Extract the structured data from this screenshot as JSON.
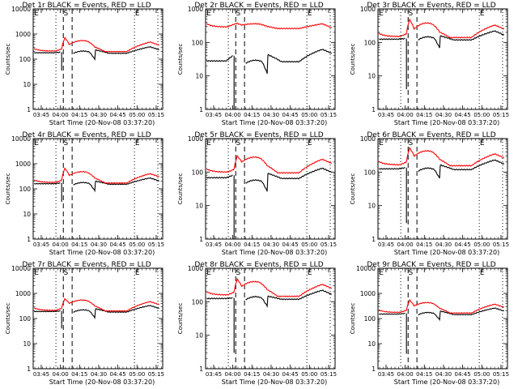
{
  "chart_data": {
    "type": "line",
    "layout": "3x3 grid",
    "common": {
      "xlabel": "Start Time (20-Nov-08 03:37:20)",
      "ylabel": "Counts/sec",
      "yscale": "log",
      "x_ticks": [
        "03:45",
        "04:00",
        "04:15",
        "04:30",
        "04:45",
        "05:00",
        "05:15"
      ],
      "x_tick_minutes": [
        225,
        240,
        255,
        270,
        285,
        300,
        315
      ],
      "xlim_minutes": [
        218.7,
        320.1
      ],
      "series_colors": {
        "events": "#000000",
        "lld": "#ff0000"
      },
      "legend_text": "BLACK = Events, RED = LLD",
      "vlines": [
        {
          "minute": 236.5,
          "style": "dotted"
        },
        {
          "minute": 242.3,
          "style": "dashed"
        },
        {
          "minute": 249.2,
          "style": "dashed"
        },
        {
          "minute": 298.0,
          "style": "dotted"
        },
        {
          "minute": 316.3,
          "style": "dotted"
        }
      ],
      "markers": [
        {
          "label": "E",
          "minute": 219.5
        },
        {
          "label": "S",
          "minute": 242.5
        },
        {
          "label": "E",
          "minute": 298.5
        }
      ]
    },
    "panels": [
      {
        "title": "Det 1r BLACK = Events, RED = LLD",
        "ylim": [
          1,
          10000
        ],
        "y_ticks": [
          "1",
          "10",
          "100",
          "1000",
          "10000"
        ],
        "events": {
          "base": 180,
          "pre": 190,
          "dip": 35,
          "mid": 200,
          "step_low": 130,
          "step_high": 230,
          "late": 310
        },
        "lld": {
          "base": 210,
          "peak": 700,
          "trough": 380,
          "mid": 550,
          "low": 200,
          "late": 480
        }
      },
      {
        "title": "Det 2r BLACK = Events, RED = LLD",
        "ylim": [
          1,
          1000
        ],
        "y_ticks": [
          "1",
          "10",
          "100",
          "1000"
        ],
        "events": {
          "base": 28,
          "pre": 40,
          "dip": 1,
          "mid": 28,
          "step_low": 16,
          "step_high": 42,
          "late": 62
        },
        "lld": {
          "base": 290,
          "peak": 370,
          "trough": 330,
          "mid": 360,
          "low": 260,
          "late": 360
        }
      },
      {
        "title": "Det 3r BLACK = Events, RED = LLD",
        "ylim": [
          1,
          1000
        ],
        "y_ticks": [
          "1",
          "10",
          "100",
          "1000"
        ],
        "events": {
          "base": 125,
          "pre": 130,
          "dip": 4,
          "mid": 140,
          "step_low": 90,
          "step_high": 155,
          "late": 220
        },
        "lld": {
          "base": 150,
          "peak": 480,
          "trough": 250,
          "mid": 380,
          "low": 140,
          "late": 330
        }
      },
      {
        "title": "Det 4r BLACK = Events, RED = LLD",
        "ylim": [
          1,
          10000
        ],
        "y_ticks": [
          "1",
          "10",
          "100",
          "1000",
          "10000"
        ],
        "events": {
          "base": 160,
          "pre": 170,
          "dip": 30,
          "mid": 170,
          "step_low": 110,
          "step_high": 200,
          "late": 270
        },
        "lld": {
          "base": 180,
          "peak": 650,
          "trough": 340,
          "mid": 480,
          "low": 170,
          "late": 400
        }
      },
      {
        "title": "Det 5r BLACK = Events, RED = LLD",
        "ylim": [
          1,
          1000
        ],
        "y_ticks": [
          "1",
          "10",
          "100",
          "1000"
        ],
        "events": {
          "base": 68,
          "pre": 80,
          "dip": 1,
          "mid": 55,
          "step_low": 35,
          "step_high": 90,
          "late": 130
        },
        "lld": {
          "base": 100,
          "peak": 300,
          "trough": 200,
          "mid": 280,
          "low": 95,
          "late": 240
        }
      },
      {
        "title": "Det 6r BLACK = Events, RED = LLD",
        "ylim": [
          1,
          1000
        ],
        "y_ticks": [
          "1",
          "10",
          "100",
          "1000"
        ],
        "events": {
          "base": 125,
          "pre": 135,
          "dip": 3,
          "mid": 125,
          "step_low": 85,
          "step_high": 160,
          "late": 230
        },
        "lld": {
          "base": 165,
          "peak": 520,
          "trough": 300,
          "mid": 430,
          "low": 155,
          "late": 350
        }
      },
      {
        "title": "Det 7r BLACK = Events, RED = LLD",
        "ylim": [
          1,
          10000
        ],
        "y_ticks": [
          "1",
          "10",
          "100",
          "1000",
          "10000"
        ],
        "events": {
          "base": 190,
          "pre": 200,
          "dip": 40,
          "mid": 210,
          "step_low": 140,
          "step_high": 240,
          "late": 330
        },
        "lld": {
          "base": 210,
          "peak": 600,
          "trough": 400,
          "mid": 540,
          "low": 200,
          "late": 470
        }
      },
      {
        "title": "Det 8r BLACK = Events, RED = LLD",
        "ylim": [
          1,
          1000
        ],
        "y_ticks": [
          "1",
          "10",
          "100",
          "1000"
        ],
        "events": {
          "base": 125,
          "pre": 130,
          "dip": 3,
          "mid": 135,
          "step_low": 95,
          "step_high": 145,
          "late": 220
        },
        "lld": {
          "base": 160,
          "peak": 470,
          "trough": 290,
          "mid": 400,
          "low": 145,
          "late": 330
        }
      },
      {
        "title": "Det 9r BLACK = Events, RED = LLD",
        "ylim": [
          1,
          10000
        ],
        "y_ticks": [
          "1",
          "10",
          "100",
          "1000",
          "10000"
        ],
        "events": {
          "base": 150,
          "pre": 160,
          "dip": 4,
          "mid": 165,
          "step_low": 115,
          "step_high": 195,
          "late": 260
        },
        "lld": {
          "base": 175,
          "peak": 540,
          "trough": 320,
          "mid": 430,
          "low": 165,
          "late": 370
        }
      }
    ]
  }
}
